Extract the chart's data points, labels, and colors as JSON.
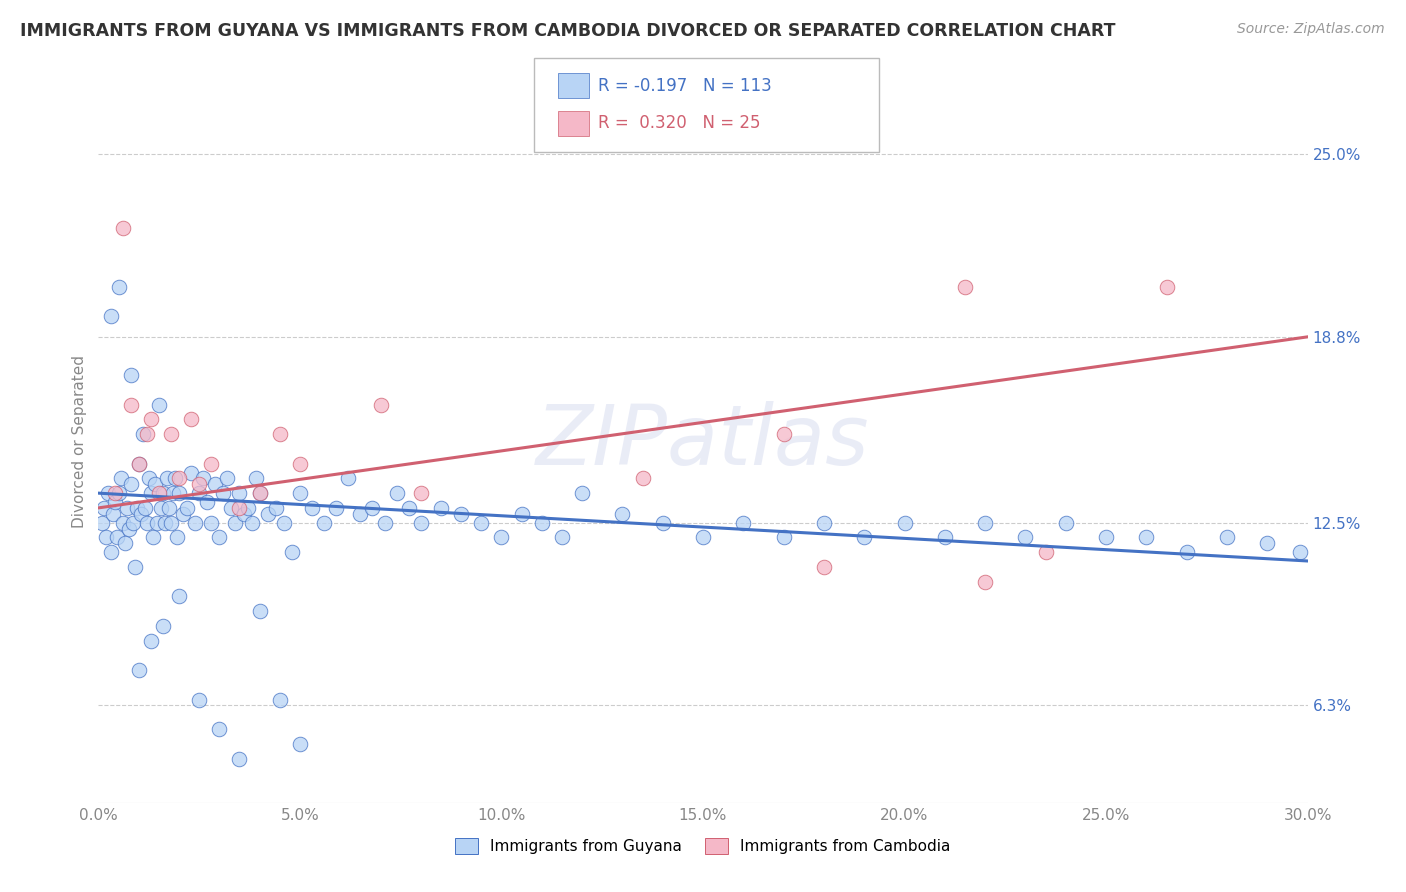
{
  "title": "IMMIGRANTS FROM GUYANA VS IMMIGRANTS FROM CAMBODIA DIVORCED OR SEPARATED CORRELATION CHART",
  "source": "Source: ZipAtlas.com",
  "ylabel": "Divorced or Separated",
  "xlim": [
    0.0,
    30.0
  ],
  "ylim": [
    3.0,
    27.5
  ],
  "xticks": [
    0.0,
    5.0,
    10.0,
    15.0,
    20.0,
    25.0,
    30.0
  ],
  "xtick_labels": [
    "0.0%",
    "5.0%",
    "10.0%",
    "15.0%",
    "20.0%",
    "25.0%",
    "30.0%"
  ],
  "ytick_values": [
    6.3,
    12.5,
    18.8,
    25.0
  ],
  "ytick_labels": [
    "6.3%",
    "12.5%",
    "18.8%",
    "25.0%"
  ],
  "watermark": "ZIPatlas",
  "legend_guyana_r": "-0.197",
  "legend_guyana_n": "113",
  "legend_cambodia_r": "0.320",
  "legend_cambodia_n": "25",
  "color_guyana": "#b8d4f5",
  "color_cambodia": "#f5b8c8",
  "color_guyana_line": "#4472c4",
  "color_cambodia_line": "#d06070",
  "background_color": "#ffffff",
  "guyana_scatter": {
    "x": [
      0.1,
      0.15,
      0.2,
      0.25,
      0.3,
      0.35,
      0.4,
      0.45,
      0.5,
      0.55,
      0.6,
      0.65,
      0.7,
      0.75,
      0.8,
      0.85,
      0.9,
      0.95,
      1.0,
      1.05,
      1.1,
      1.15,
      1.2,
      1.25,
      1.3,
      1.35,
      1.4,
      1.45,
      1.5,
      1.55,
      1.6,
      1.65,
      1.7,
      1.75,
      1.8,
      1.85,
      1.9,
      1.95,
      2.0,
      2.1,
      2.2,
      2.3,
      2.4,
      2.5,
      2.6,
      2.7,
      2.8,
      2.9,
      3.0,
      3.1,
      3.2,
      3.3,
      3.4,
      3.5,
      3.6,
      3.7,
      3.8,
      3.9,
      4.0,
      4.2,
      4.4,
      4.6,
      4.8,
      5.0,
      5.3,
      5.6,
      5.9,
      6.2,
      6.5,
      6.8,
      7.1,
      7.4,
      7.7,
      8.0,
      8.5,
      9.0,
      9.5,
      10.0,
      10.5,
      11.0,
      11.5,
      12.0,
      13.0,
      14.0,
      15.0,
      16.0,
      17.0,
      18.0,
      19.0,
      20.0,
      21.0,
      22.0,
      23.0,
      24.0,
      25.0,
      26.0,
      27.0,
      28.0,
      29.0,
      29.8,
      0.3,
      0.5,
      0.8,
      1.0,
      1.3,
      1.6,
      2.0,
      2.5,
      3.0,
      3.5,
      4.0,
      4.5,
      5.0
    ],
    "y": [
      12.5,
      13.0,
      12.0,
      13.5,
      11.5,
      12.8,
      13.2,
      12.0,
      13.5,
      14.0,
      12.5,
      11.8,
      13.0,
      12.3,
      13.8,
      12.5,
      11.0,
      13.0,
      14.5,
      12.8,
      15.5,
      13.0,
      12.5,
      14.0,
      13.5,
      12.0,
      13.8,
      12.5,
      16.5,
      13.0,
      13.5,
      12.5,
      14.0,
      13.0,
      12.5,
      13.5,
      14.0,
      12.0,
      13.5,
      12.8,
      13.0,
      14.2,
      12.5,
      13.5,
      14.0,
      13.2,
      12.5,
      13.8,
      12.0,
      13.5,
      14.0,
      13.0,
      12.5,
      13.5,
      12.8,
      13.0,
      12.5,
      14.0,
      13.5,
      12.8,
      13.0,
      12.5,
      11.5,
      13.5,
      13.0,
      12.5,
      13.0,
      14.0,
      12.8,
      13.0,
      12.5,
      13.5,
      13.0,
      12.5,
      13.0,
      12.8,
      12.5,
      12.0,
      12.8,
      12.5,
      12.0,
      13.5,
      12.8,
      12.5,
      12.0,
      12.5,
      12.0,
      12.5,
      12.0,
      12.5,
      12.0,
      12.5,
      12.0,
      12.5,
      12.0,
      12.0,
      11.5,
      12.0,
      11.8,
      11.5,
      19.5,
      20.5,
      17.5,
      7.5,
      8.5,
      9.0,
      10.0,
      6.5,
      5.5,
      4.5,
      9.5,
      6.5,
      5.0
    ]
  },
  "cambodia_scatter": {
    "x": [
      0.4,
      0.8,
      1.0,
      1.3,
      1.5,
      1.8,
      2.0,
      2.3,
      2.5,
      2.8,
      3.5,
      4.0,
      4.5,
      5.0,
      7.0,
      8.0,
      13.5,
      17.0,
      18.0,
      21.5,
      22.0,
      23.5,
      26.5,
      0.6,
      1.2
    ],
    "y": [
      13.5,
      16.5,
      14.5,
      16.0,
      13.5,
      15.5,
      14.0,
      16.0,
      13.8,
      14.5,
      13.0,
      13.5,
      15.5,
      14.5,
      16.5,
      13.5,
      14.0,
      15.5,
      11.0,
      20.5,
      10.5,
      11.5,
      20.5,
      22.5,
      15.5
    ]
  },
  "guyana_line": {
    "x_start": 0.0,
    "x_end": 30.0,
    "y_start": 13.5,
    "y_end": 11.2
  },
  "cambodia_line": {
    "x_start": 0.0,
    "x_end": 30.0,
    "y_start": 13.0,
    "y_end": 18.8
  }
}
